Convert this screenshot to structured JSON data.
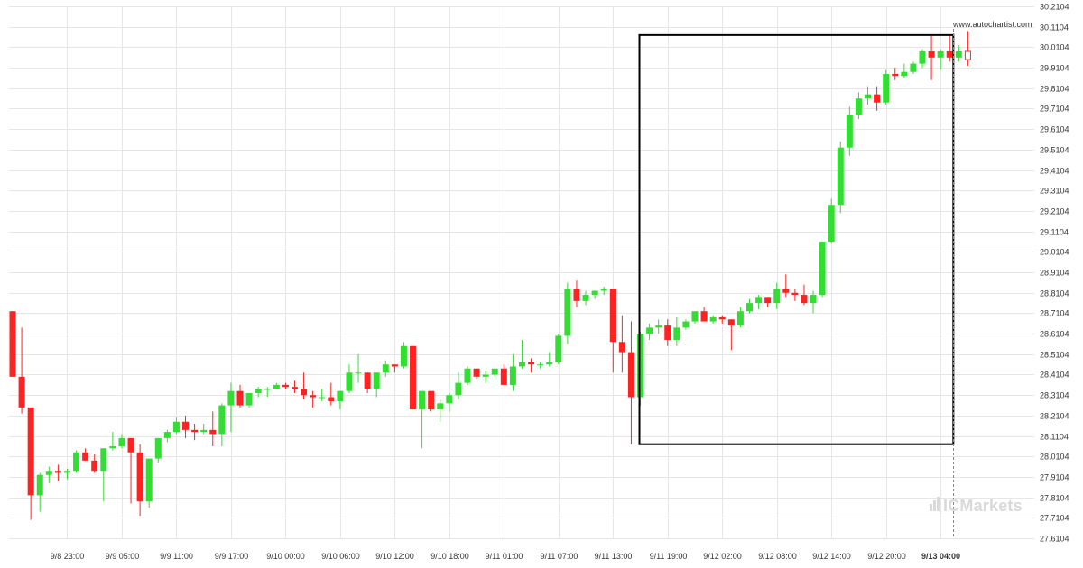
{
  "watermark": {
    "url": "www.autochartist.com",
    "brand": "ICMarkets"
  },
  "chart_data": {
    "type": "candlestick",
    "grid": true,
    "ylim": [
      27.56,
      30.2104
    ],
    "y_ticks": [
      "30.2104",
      "30.1104",
      "30.0104",
      "29.9104",
      "29.8104",
      "29.7104",
      "29.6104",
      "29.5104",
      "29.4104",
      "29.3104",
      "29.2104",
      "29.1104",
      "29.0104",
      "28.9104",
      "28.8104",
      "28.7104",
      "28.6104",
      "28.5104",
      "28.4104",
      "28.3104",
      "28.2104",
      "28.1104",
      "28.0104",
      "27.9104",
      "27.8104",
      "27.7104",
      "27.6104"
    ],
    "x_ticks": [
      {
        "label": "9/8 23:00",
        "index": 6
      },
      {
        "label": "9/9 05:00",
        "index": 12
      },
      {
        "label": "9/9 11:00",
        "index": 18
      },
      {
        "label": "9/9 17:00",
        "index": 24
      },
      {
        "label": "9/10 00:00",
        "index": 30
      },
      {
        "label": "9/10 06:00",
        "index": 36
      },
      {
        "label": "9/10 12:00",
        "index": 42
      },
      {
        "label": "9/10 18:00",
        "index": 48
      },
      {
        "label": "9/11 01:00",
        "index": 54
      },
      {
        "label": "9/11 07:00",
        "index": 60
      },
      {
        "label": "9/11 13:00",
        "index": 66
      },
      {
        "label": "9/11 19:00",
        "index": 72
      },
      {
        "label": "9/12 02:00",
        "index": 78
      },
      {
        "label": "9/12 08:00",
        "index": 84
      },
      {
        "label": "9/12 14:00",
        "index": 90
      },
      {
        "label": "9/12 20:00",
        "index": 96
      },
      {
        "label": "9/13 04:00",
        "index": 102,
        "bold": true
      }
    ],
    "colors": {
      "up": "#33dd33",
      "down": "#ff2222",
      "grid": "#e6e6e6",
      "box": "#000000"
    },
    "candles": [
      [
        28.72,
        28.72,
        28.4,
        28.4
      ],
      [
        28.4,
        28.64,
        28.22,
        28.25
      ],
      [
        28.25,
        28.25,
        27.7,
        27.82
      ],
      [
        27.82,
        27.93,
        27.74,
        27.92
      ],
      [
        27.92,
        27.96,
        27.88,
        27.94
      ],
      [
        27.94,
        27.97,
        27.89,
        27.93
      ],
      [
        27.93,
        27.95,
        27.9,
        27.94
      ],
      [
        27.94,
        28.04,
        27.93,
        28.03
      ],
      [
        28.03,
        28.05,
        27.99,
        27.99
      ],
      [
        27.99,
        28.02,
        27.93,
        27.94
      ],
      [
        27.94,
        28.05,
        27.79,
        28.05
      ],
      [
        28.05,
        28.13,
        28.04,
        28.06
      ],
      [
        28.06,
        28.12,
        28.05,
        28.1
      ],
      [
        28.1,
        28.1,
        27.78,
        28.03
      ],
      [
        28.03,
        28.07,
        27.72,
        27.79
      ],
      [
        27.79,
        28.0,
        27.76,
        28.0
      ],
      [
        28.0,
        28.1,
        27.98,
        28.1
      ],
      [
        28.1,
        28.14,
        28.08,
        28.13
      ],
      [
        28.13,
        28.2,
        28.12,
        28.18
      ],
      [
        28.18,
        28.21,
        28.1,
        28.14
      ],
      [
        28.14,
        28.17,
        28.09,
        28.13
      ],
      [
        28.13,
        28.17,
        28.12,
        28.14
      ],
      [
        28.14,
        28.23,
        28.06,
        28.12
      ],
      [
        28.12,
        28.27,
        28.06,
        28.26
      ],
      [
        28.26,
        28.37,
        28.13,
        28.33
      ],
      [
        28.33,
        28.36,
        28.25,
        28.26
      ],
      [
        28.26,
        28.32,
        28.25,
        28.32
      ],
      [
        28.32,
        28.35,
        28.3,
        28.34
      ],
      [
        28.34,
        28.35,
        28.3,
        28.34
      ],
      [
        28.34,
        28.37,
        28.34,
        28.36
      ],
      [
        28.36,
        28.37,
        28.34,
        28.35
      ],
      [
        28.35,
        28.38,
        28.32,
        28.34
      ],
      [
        28.34,
        28.42,
        28.29,
        28.31
      ],
      [
        28.31,
        28.33,
        28.25,
        28.3
      ],
      [
        28.3,
        28.34,
        28.28,
        28.3
      ],
      [
        28.3,
        28.37,
        28.26,
        28.28
      ],
      [
        28.28,
        28.33,
        28.24,
        28.33
      ],
      [
        28.33,
        28.46,
        28.32,
        28.42
      ],
      [
        28.42,
        28.51,
        28.37,
        28.42
      ],
      [
        28.42,
        28.42,
        28.32,
        28.34
      ],
      [
        28.34,
        28.42,
        28.3,
        28.42
      ],
      [
        28.42,
        28.48,
        28.4,
        28.46
      ],
      [
        28.46,
        28.46,
        28.42,
        28.45
      ],
      [
        28.45,
        28.57,
        28.44,
        28.55
      ],
      [
        28.55,
        28.55,
        28.24,
        28.24
      ],
      [
        28.24,
        28.33,
        28.05,
        28.33
      ],
      [
        28.33,
        28.33,
        28.23,
        28.24
      ],
      [
        28.24,
        28.29,
        28.18,
        28.27
      ],
      [
        28.27,
        28.32,
        28.23,
        28.31
      ],
      [
        28.31,
        28.42,
        28.29,
        28.37
      ],
      [
        28.37,
        28.45,
        28.36,
        28.44
      ],
      [
        28.44,
        28.44,
        28.39,
        28.4
      ],
      [
        28.4,
        28.43,
        28.37,
        28.41
      ],
      [
        28.41,
        28.44,
        28.4,
        28.44
      ],
      [
        28.44,
        28.46,
        28.36,
        28.36
      ],
      [
        28.36,
        28.51,
        28.33,
        28.45
      ],
      [
        28.45,
        28.58,
        28.44,
        28.47
      ],
      [
        28.47,
        28.49,
        28.42,
        28.46
      ],
      [
        28.46,
        28.47,
        28.44,
        28.46
      ],
      [
        28.46,
        28.52,
        28.45,
        28.47
      ],
      [
        28.47,
        28.61,
        28.46,
        28.6
      ],
      [
        28.6,
        28.86,
        28.56,
        28.83
      ],
      [
        28.83,
        28.87,
        28.74,
        28.77
      ],
      [
        28.77,
        28.82,
        28.75,
        28.8
      ],
      [
        28.8,
        28.82,
        28.78,
        28.82
      ],
      [
        28.82,
        28.84,
        28.8,
        28.83
      ],
      [
        28.83,
        28.83,
        28.42,
        28.57
      ],
      [
        28.57,
        28.7,
        28.42,
        28.52
      ],
      [
        28.52,
        28.67,
        28.07,
        28.3
      ],
      [
        28.3,
        28.62,
        28.26,
        28.61
      ],
      [
        28.61,
        28.66,
        28.58,
        28.64
      ],
      [
        28.64,
        28.68,
        28.61,
        28.65
      ],
      [
        28.65,
        28.68,
        28.55,
        28.58
      ],
      [
        28.58,
        28.69,
        28.55,
        28.64
      ],
      [
        28.64,
        28.68,
        28.63,
        28.67
      ],
      [
        28.67,
        28.72,
        28.66,
        28.72
      ],
      [
        28.72,
        28.74,
        28.67,
        28.67
      ],
      [
        28.67,
        28.7,
        28.66,
        28.69
      ],
      [
        28.69,
        28.7,
        28.66,
        28.68
      ],
      [
        28.68,
        28.68,
        28.53,
        28.65
      ],
      [
        28.65,
        28.74,
        28.64,
        28.72
      ],
      [
        28.72,
        28.78,
        28.71,
        28.76
      ],
      [
        28.76,
        28.8,
        28.73,
        28.79
      ],
      [
        28.79,
        28.79,
        28.74,
        28.76
      ],
      [
        28.76,
        28.86,
        28.73,
        28.83
      ],
      [
        28.83,
        28.9,
        28.79,
        28.81
      ],
      [
        28.81,
        28.83,
        28.77,
        28.8
      ],
      [
        28.8,
        28.85,
        28.75,
        28.76
      ],
      [
        28.76,
        28.82,
        28.71,
        28.8
      ],
      [
        28.8,
        29.06,
        28.79,
        29.06
      ],
      [
        29.06,
        29.27,
        29.05,
        29.24
      ],
      [
        29.24,
        29.55,
        29.2,
        29.52
      ],
      [
        29.52,
        29.72,
        29.48,
        29.68
      ],
      [
        29.68,
        29.79,
        29.66,
        29.76
      ],
      [
        29.76,
        29.82,
        29.73,
        29.78
      ],
      [
        29.78,
        29.82,
        29.7,
        29.74
      ],
      [
        29.74,
        29.9,
        29.73,
        29.88
      ],
      [
        29.88,
        29.91,
        29.85,
        29.87
      ],
      [
        29.87,
        29.93,
        29.86,
        29.89
      ],
      [
        29.89,
        29.94,
        29.88,
        29.93
      ],
      [
        29.93,
        30.0,
        29.91,
        29.99
      ],
      [
        29.99,
        30.07,
        29.85,
        29.96
      ],
      [
        29.96,
        30.0,
        29.9,
        29.99
      ],
      [
        29.99,
        30.07,
        29.94,
        29.96
      ],
      [
        29.96,
        30.02,
        29.94,
        29.99
      ],
      [
        29.99,
        30.09,
        29.92,
        29.95
      ]
    ],
    "annotation_box": {
      "start_index": 69,
      "end_index": 104,
      "low": 28.07,
      "high": 30.07
    },
    "current_marker_index": 104
  }
}
